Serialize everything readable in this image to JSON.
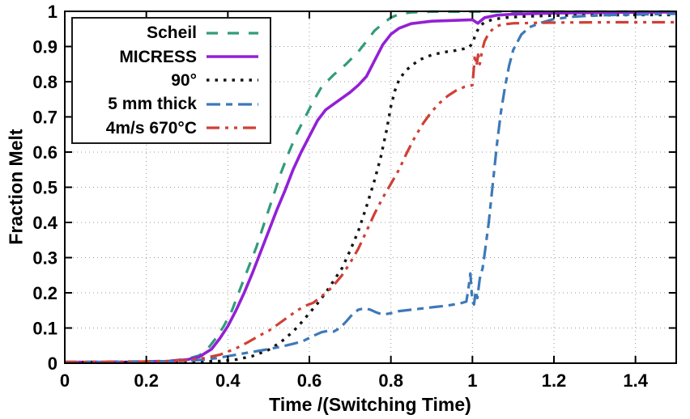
{
  "chart_data": {
    "type": "line",
    "title": "",
    "xlabel": "Time /(Switching Time)",
    "ylabel": "Fraction Melt",
    "xlim": [
      0,
      1.5
    ],
    "ylim": [
      0,
      1
    ],
    "grid": true,
    "grid_style": "dotted-gray",
    "legend_position": "top-left",
    "x_ticks": [
      0,
      0.2,
      0.4,
      0.6,
      0.8,
      1,
      1.2,
      1.4
    ],
    "x_tick_labels": [
      "0",
      "0.2",
      "0.4",
      "0.6",
      "0.8",
      "1",
      "1.2",
      "1.4"
    ],
    "y_ticks": [
      0,
      0.1,
      0.2,
      0.3,
      0.4,
      0.5,
      0.6,
      0.7,
      0.8,
      0.9,
      1
    ],
    "y_tick_labels": [
      "0",
      "0.1",
      "0.2",
      "0.3",
      "0.4",
      "0.5",
      "0.6",
      "0.7",
      "0.8",
      "0.9",
      "1"
    ],
    "series": [
      {
        "name": "Scheil",
        "color": "#339b7a",
        "dash": "14,12",
        "width": 3.2,
        "points": [
          [
            0,
            0.004
          ],
          [
            0.1,
            0.004
          ],
          [
            0.2,
            0.005
          ],
          [
            0.26,
            0.007
          ],
          [
            0.3,
            0.012
          ],
          [
            0.33,
            0.022
          ],
          [
            0.35,
            0.04
          ],
          [
            0.37,
            0.07
          ],
          [
            0.39,
            0.105
          ],
          [
            0.41,
            0.15
          ],
          [
            0.43,
            0.21
          ],
          [
            0.45,
            0.27
          ],
          [
            0.47,
            0.33
          ],
          [
            0.49,
            0.4
          ],
          [
            0.51,
            0.47
          ],
          [
            0.53,
            0.54
          ],
          [
            0.55,
            0.6
          ],
          [
            0.57,
            0.655
          ],
          [
            0.59,
            0.7
          ],
          [
            0.61,
            0.745
          ],
          [
            0.63,
            0.785
          ],
          [
            0.66,
            0.82
          ],
          [
            0.69,
            0.85
          ],
          [
            0.72,
            0.885
          ],
          [
            0.74,
            0.915
          ],
          [
            0.76,
            0.945
          ],
          [
            0.78,
            0.965
          ],
          [
            0.8,
            0.982
          ],
          [
            0.82,
            0.992
          ],
          [
            0.85,
            0.997
          ],
          [
            0.9,
            0.999
          ],
          [
            1.0,
            0.999
          ],
          [
            1.2,
            0.999
          ],
          [
            1.5,
            0.999
          ]
        ]
      },
      {
        "name": "MICRESS",
        "color": "#9320d6",
        "dash": "",
        "width": 3.6,
        "points": [
          [
            0,
            0.003
          ],
          [
            0.15,
            0.003
          ],
          [
            0.25,
            0.005
          ],
          [
            0.3,
            0.01
          ],
          [
            0.33,
            0.018
          ],
          [
            0.36,
            0.04
          ],
          [
            0.38,
            0.07
          ],
          [
            0.4,
            0.105
          ],
          [
            0.42,
            0.15
          ],
          [
            0.44,
            0.2
          ],
          [
            0.46,
            0.255
          ],
          [
            0.48,
            0.315
          ],
          [
            0.5,
            0.375
          ],
          [
            0.52,
            0.435
          ],
          [
            0.54,
            0.49
          ],
          [
            0.56,
            0.55
          ],
          [
            0.58,
            0.6
          ],
          [
            0.6,
            0.645
          ],
          [
            0.62,
            0.69
          ],
          [
            0.64,
            0.72
          ],
          [
            0.67,
            0.745
          ],
          [
            0.7,
            0.77
          ],
          [
            0.72,
            0.79
          ],
          [
            0.74,
            0.815
          ],
          [
            0.76,
            0.86
          ],
          [
            0.78,
            0.905
          ],
          [
            0.8,
            0.935
          ],
          [
            0.82,
            0.952
          ],
          [
            0.85,
            0.965
          ],
          [
            0.9,
            0.972
          ],
          [
            0.95,
            0.974
          ],
          [
            1.0,
            0.976
          ],
          [
            1.013,
            0.966
          ],
          [
            1.03,
            0.982
          ],
          [
            1.06,
            0.989
          ],
          [
            1.1,
            0.992
          ],
          [
            1.2,
            0.995
          ],
          [
            1.35,
            0.997
          ],
          [
            1.5,
            0.998
          ]
        ]
      },
      {
        "name": "90°",
        "color": "#141414",
        "dash": "3.5,7",
        "width": 3.4,
        "points": [
          [
            0,
            0.002
          ],
          [
            0.2,
            0.002
          ],
          [
            0.3,
            0.004
          ],
          [
            0.38,
            0.006
          ],
          [
            0.42,
            0.01
          ],
          [
            0.46,
            0.02
          ],
          [
            0.5,
            0.038
          ],
          [
            0.53,
            0.06
          ],
          [
            0.56,
            0.09
          ],
          [
            0.58,
            0.115
          ],
          [
            0.6,
            0.142
          ],
          [
            0.62,
            0.17
          ],
          [
            0.64,
            0.2
          ],
          [
            0.66,
            0.235
          ],
          [
            0.68,
            0.27
          ],
          [
            0.7,
            0.32
          ],
          [
            0.72,
            0.375
          ],
          [
            0.74,
            0.445
          ],
          [
            0.76,
            0.52
          ],
          [
            0.775,
            0.585
          ],
          [
            0.79,
            0.665
          ],
          [
            0.8,
            0.73
          ],
          [
            0.81,
            0.775
          ],
          [
            0.82,
            0.805
          ],
          [
            0.835,
            0.83
          ],
          [
            0.85,
            0.845
          ],
          [
            0.87,
            0.862
          ],
          [
            0.9,
            0.876
          ],
          [
            0.93,
            0.884
          ],
          [
            0.96,
            0.889
          ],
          [
            0.99,
            0.896
          ],
          [
            1.0,
            0.908
          ],
          [
            1.008,
            0.936
          ],
          [
            1.018,
            0.958
          ],
          [
            1.03,
            0.969
          ],
          [
            1.05,
            0.977
          ],
          [
            1.08,
            0.982
          ],
          [
            1.12,
            0.985
          ],
          [
            1.2,
            0.988
          ],
          [
            1.3,
            0.989
          ],
          [
            1.4,
            0.99
          ],
          [
            1.5,
            0.99
          ]
        ]
      },
      {
        "name": "5 mm thick",
        "color": "#3d79b8",
        "dash": "17,7,8,7",
        "width": 3.2,
        "points": [
          [
            0,
            0.003
          ],
          [
            0.2,
            0.004
          ],
          [
            0.28,
            0.006
          ],
          [
            0.33,
            0.009
          ],
          [
            0.37,
            0.014
          ],
          [
            0.41,
            0.022
          ],
          [
            0.45,
            0.03
          ],
          [
            0.49,
            0.038
          ],
          [
            0.53,
            0.047
          ],
          [
            0.56,
            0.055
          ],
          [
            0.585,
            0.063
          ],
          [
            0.61,
            0.078
          ],
          [
            0.63,
            0.088
          ],
          [
            0.645,
            0.092
          ],
          [
            0.66,
            0.09
          ],
          [
            0.675,
            0.1
          ],
          [
            0.69,
            0.118
          ],
          [
            0.705,
            0.138
          ],
          [
            0.72,
            0.152
          ],
          [
            0.735,
            0.156
          ],
          [
            0.75,
            0.152
          ],
          [
            0.765,
            0.144
          ],
          [
            0.78,
            0.138
          ],
          [
            0.8,
            0.142
          ],
          [
            0.82,
            0.148
          ],
          [
            0.85,
            0.152
          ],
          [
            0.88,
            0.156
          ],
          [
            0.91,
            0.16
          ],
          [
            0.94,
            0.164
          ],
          [
            0.97,
            0.17
          ],
          [
            0.985,
            0.175
          ],
          [
            0.99,
            0.21
          ],
          [
            0.995,
            0.255
          ],
          [
            1.0,
            0.175
          ],
          [
            1.004,
            0.167
          ],
          [
            1.008,
            0.205
          ],
          [
            1.012,
            0.185
          ],
          [
            1.018,
            0.24
          ],
          [
            1.025,
            0.27
          ],
          [
            1.03,
            0.31
          ],
          [
            1.04,
            0.4
          ],
          [
            1.05,
            0.51
          ],
          [
            1.06,
            0.62
          ],
          [
            1.07,
            0.715
          ],
          [
            1.08,
            0.785
          ],
          [
            1.09,
            0.845
          ],
          [
            1.1,
            0.89
          ],
          [
            1.12,
            0.934
          ],
          [
            1.14,
            0.955
          ],
          [
            1.17,
            0.968
          ],
          [
            1.2,
            0.978
          ],
          [
            1.25,
            0.985
          ],
          [
            1.32,
            0.989
          ],
          [
            1.4,
            0.991
          ],
          [
            1.5,
            0.993
          ]
        ]
      },
      {
        "name": "4m/s 670°C",
        "color": "#cf4036",
        "dash": "16,7,4,7,4,7",
        "width": 3.2,
        "points": [
          [
            0,
            0.003
          ],
          [
            0.15,
            0.004
          ],
          [
            0.25,
            0.006
          ],
          [
            0.3,
            0.009
          ],
          [
            0.34,
            0.014
          ],
          [
            0.38,
            0.024
          ],
          [
            0.42,
            0.042
          ],
          [
            0.45,
            0.06
          ],
          [
            0.48,
            0.08
          ],
          [
            0.5,
            0.092
          ],
          [
            0.52,
            0.108
          ],
          [
            0.55,
            0.133
          ],
          [
            0.57,
            0.15
          ],
          [
            0.59,
            0.163
          ],
          [
            0.61,
            0.172
          ],
          [
            0.63,
            0.19
          ],
          [
            0.655,
            0.215
          ],
          [
            0.68,
            0.25
          ],
          [
            0.7,
            0.285
          ],
          [
            0.72,
            0.325
          ],
          [
            0.74,
            0.375
          ],
          [
            0.76,
            0.425
          ],
          [
            0.78,
            0.47
          ],
          [
            0.8,
            0.51
          ],
          [
            0.82,
            0.55
          ],
          [
            0.84,
            0.6
          ],
          [
            0.86,
            0.645
          ],
          [
            0.88,
            0.683
          ],
          [
            0.9,
            0.715
          ],
          [
            0.92,
            0.74
          ],
          [
            0.94,
            0.76
          ],
          [
            0.96,
            0.775
          ],
          [
            0.98,
            0.785
          ],
          [
            1.0,
            0.79
          ],
          [
            1.003,
            0.83
          ],
          [
            1.006,
            0.877
          ],
          [
            1.01,
            0.845
          ],
          [
            1.014,
            0.877
          ],
          [
            1.018,
            0.85
          ],
          [
            1.024,
            0.89
          ],
          [
            1.03,
            0.915
          ],
          [
            1.04,
            0.938
          ],
          [
            1.055,
            0.955
          ],
          [
            1.07,
            0.962
          ],
          [
            1.1,
            0.966
          ],
          [
            1.2,
            0.968
          ],
          [
            1.35,
            0.969
          ],
          [
            1.5,
            0.969
          ]
        ]
      }
    ]
  }
}
